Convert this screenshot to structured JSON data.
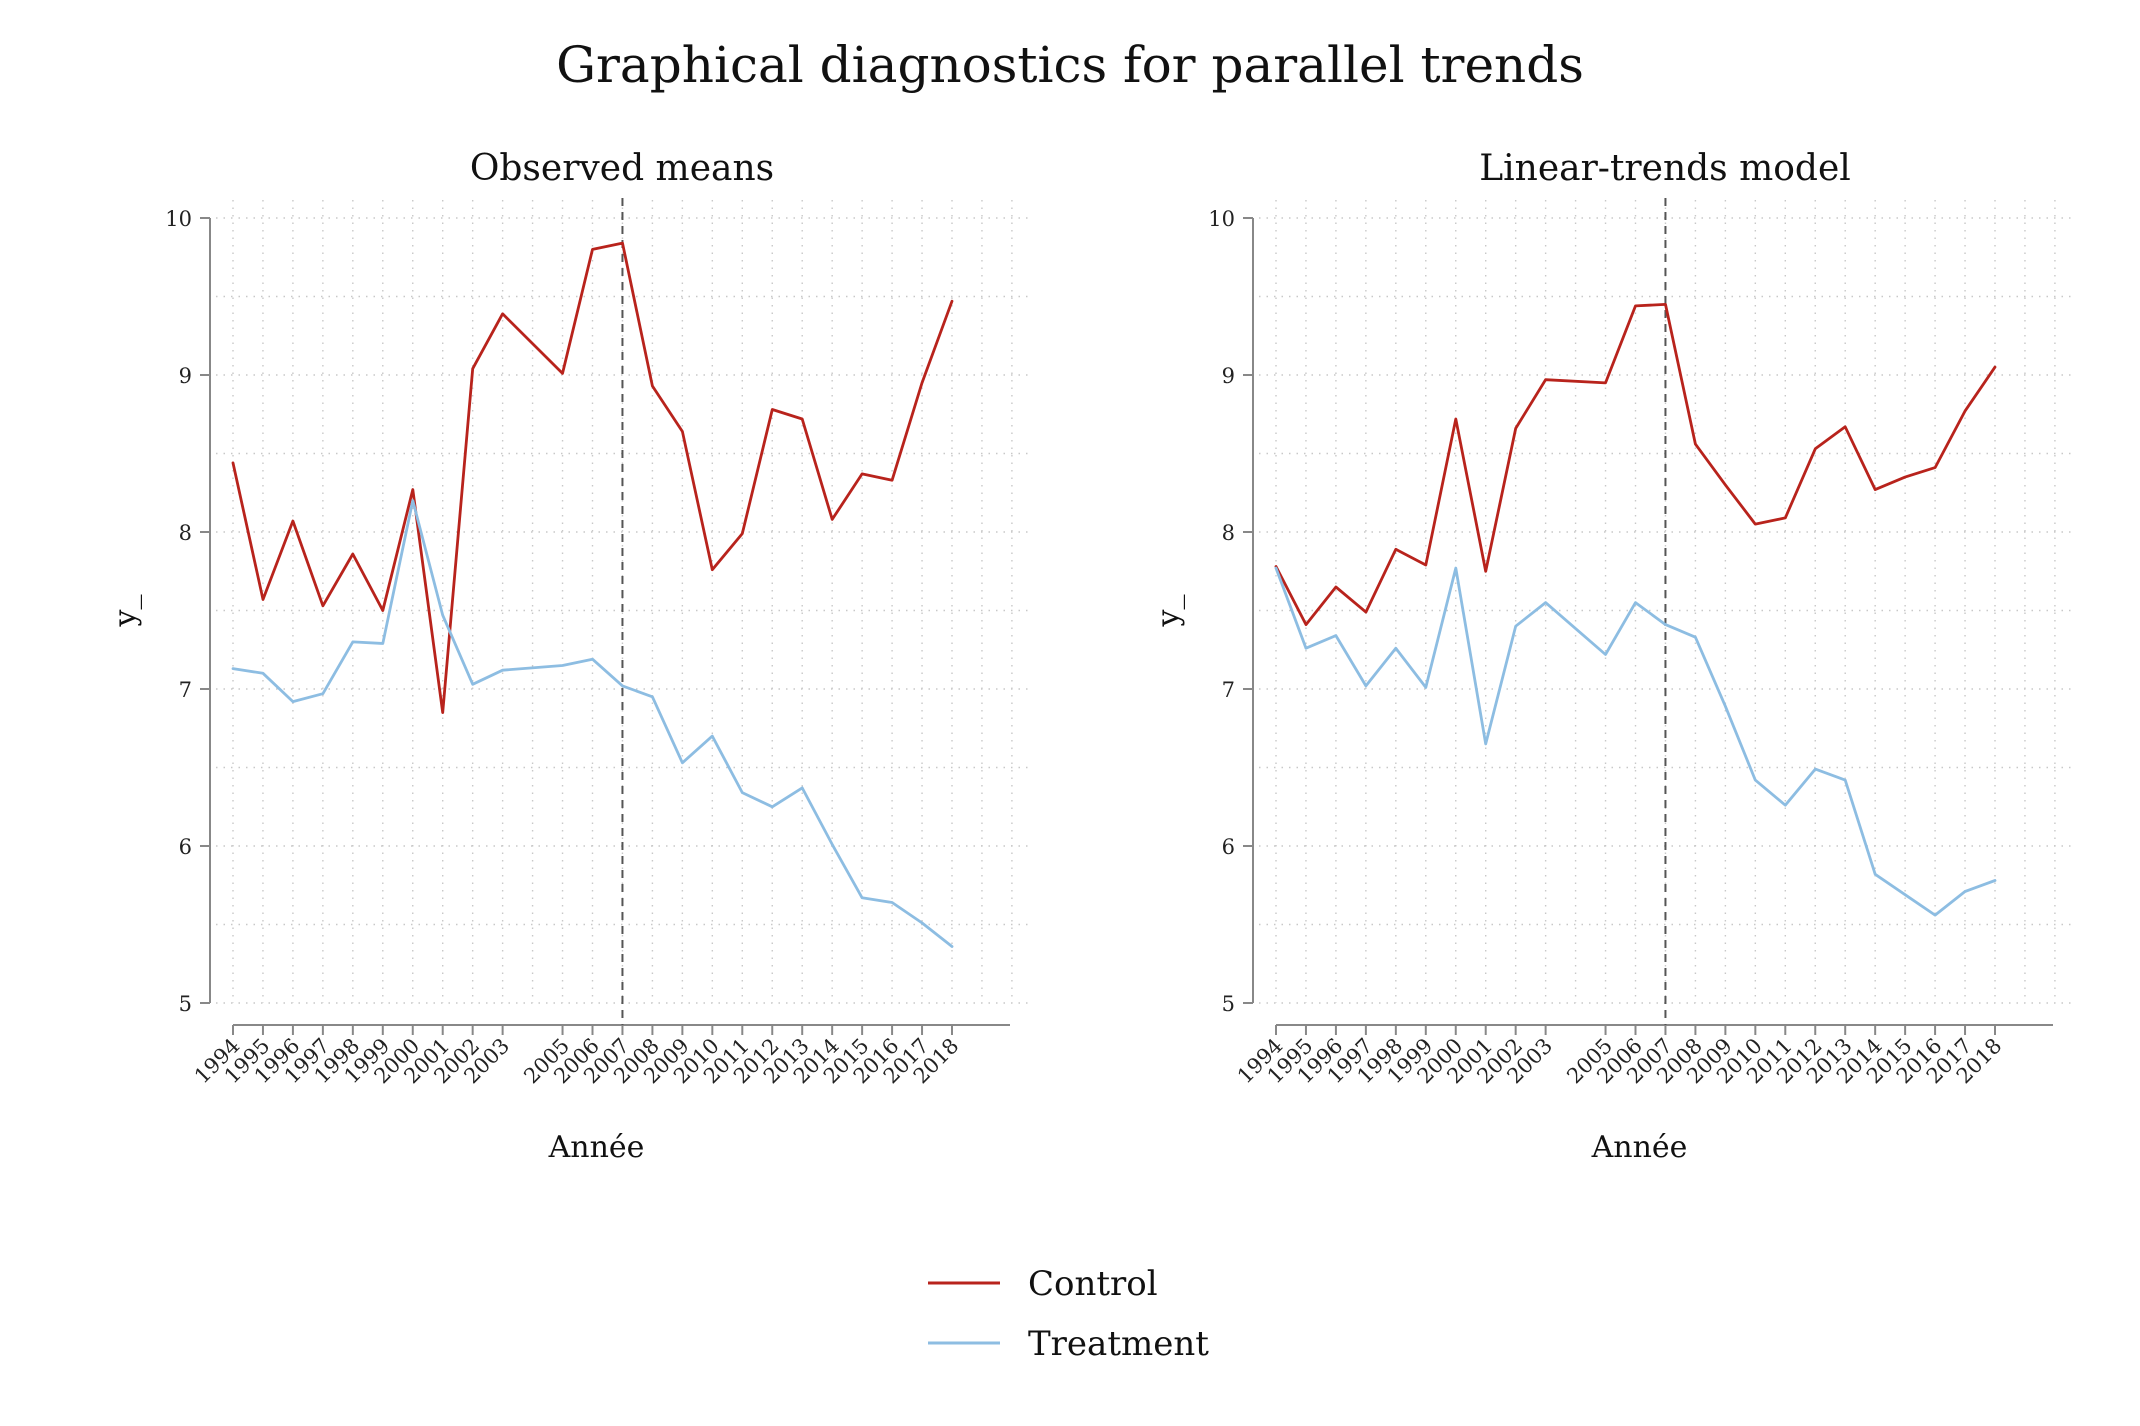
{
  "figure": {
    "title": "Graphical diagnostics for parallel trends",
    "legend": {
      "placement": "bottom-center",
      "items": [
        {
          "name": "Control",
          "color": "#b8231c"
        },
        {
          "name": "Treatment",
          "color": "#8dbde2"
        }
      ]
    },
    "colors": {
      "axis": "#888888",
      "grid": "#c8c8c8",
      "vline": "#555555"
    }
  },
  "chart_data": [
    {
      "type": "line",
      "title": "Observed means",
      "xlabel": "Année",
      "ylabel": "y_",
      "ylim": [
        5,
        10
      ],
      "yticks": [
        5,
        6,
        7,
        8,
        9,
        10
      ],
      "xlim": [
        1994,
        2020.5
      ],
      "xticks": [
        1994,
        1995,
        1996,
        1997,
        1998,
        1999,
        2000,
        2001,
        2002,
        2003,
        2005,
        2006,
        2007,
        2008,
        2009,
        2010,
        2011,
        2012,
        2013,
        2014,
        2015,
        2016,
        2017,
        2018
      ],
      "vline": 2007,
      "grid": true,
      "series": [
        {
          "name": "Control",
          "color": "#b8231c",
          "x": [
            1994,
            1995,
            1996,
            1997,
            1998,
            1999,
            2000,
            2001,
            2002,
            2003,
            2005,
            2006,
            2007,
            2008,
            2009,
            2010,
            2011,
            2012,
            2013,
            2014,
            2015,
            2016,
            2017,
            2018
          ],
          "values": [
            8.44,
            7.57,
            8.07,
            7.53,
            7.86,
            7.5,
            8.27,
            6.85,
            9.04,
            9.39,
            9.01,
            9.8,
            9.84,
            8.93,
            8.64,
            7.76,
            7.99,
            8.78,
            8.72,
            8.08,
            8.37,
            8.33,
            8.95,
            9.47
          ]
        },
        {
          "name": "Treatment",
          "color": "#8dbde2",
          "x": [
            1994,
            1995,
            1996,
            1997,
            1998,
            1999,
            2000,
            2001,
            2002,
            2003,
            2005,
            2006,
            2007,
            2008,
            2009,
            2010,
            2011,
            2012,
            2013,
            2014,
            2015,
            2016,
            2017,
            2018
          ],
          "values": [
            7.13,
            7.1,
            6.92,
            6.97,
            7.3,
            7.29,
            8.2,
            7.47,
            7.03,
            7.12,
            7.15,
            7.19,
            7.02,
            6.95,
            6.53,
            6.7,
            6.34,
            6.25,
            6.37,
            6.01,
            5.67,
            5.64,
            5.51,
            5.36
          ]
        }
      ]
    },
    {
      "type": "line",
      "title": "Linear-trends model",
      "xlabel": "Année",
      "ylabel": "y_",
      "ylim": [
        5,
        10
      ],
      "yticks": [
        5,
        6,
        7,
        8,
        9,
        10
      ],
      "xlim": [
        1994,
        2020.5
      ],
      "xticks": [
        1994,
        1995,
        1996,
        1997,
        1998,
        1999,
        2000,
        2001,
        2002,
        2003,
        2005,
        2006,
        2007,
        2008,
        2009,
        2010,
        2011,
        2012,
        2013,
        2014,
        2015,
        2016,
        2017,
        2018
      ],
      "vline": 2007,
      "grid": true,
      "series": [
        {
          "name": "Control",
          "color": "#b8231c",
          "x": [
            1994,
            1995,
            1996,
            1997,
            1998,
            1999,
            2000,
            2001,
            2002,
            2003,
            2005,
            2006,
            2007,
            2008,
            2009,
            2010,
            2011,
            2012,
            2013,
            2014,
            2015,
            2016,
            2017,
            2018
          ],
          "values": [
            7.78,
            7.41,
            7.65,
            7.49,
            7.89,
            7.79,
            8.72,
            7.75,
            8.66,
            8.97,
            8.95,
            9.44,
            9.45,
            8.56,
            8.3,
            8.05,
            8.09,
            8.53,
            8.67,
            8.27,
            8.35,
            8.41,
            8.77,
            9.05
          ]
        },
        {
          "name": "Treatment",
          "color": "#8dbde2",
          "x": [
            1994,
            1995,
            1996,
            1997,
            1998,
            1999,
            2000,
            2001,
            2002,
            2003,
            2005,
            2006,
            2007,
            2008,
            2009,
            2010,
            2011,
            2012,
            2013,
            2014,
            2015,
            2016,
            2017,
            2018
          ],
          "values": [
            7.77,
            7.26,
            7.34,
            7.02,
            7.26,
            7.01,
            7.77,
            6.65,
            7.4,
            7.55,
            7.22,
            7.55,
            7.41,
            7.33,
            6.89,
            6.42,
            6.26,
            6.49,
            6.42,
            5.82,
            5.69,
            5.56,
            5.71,
            5.78
          ]
        }
      ]
    }
  ]
}
